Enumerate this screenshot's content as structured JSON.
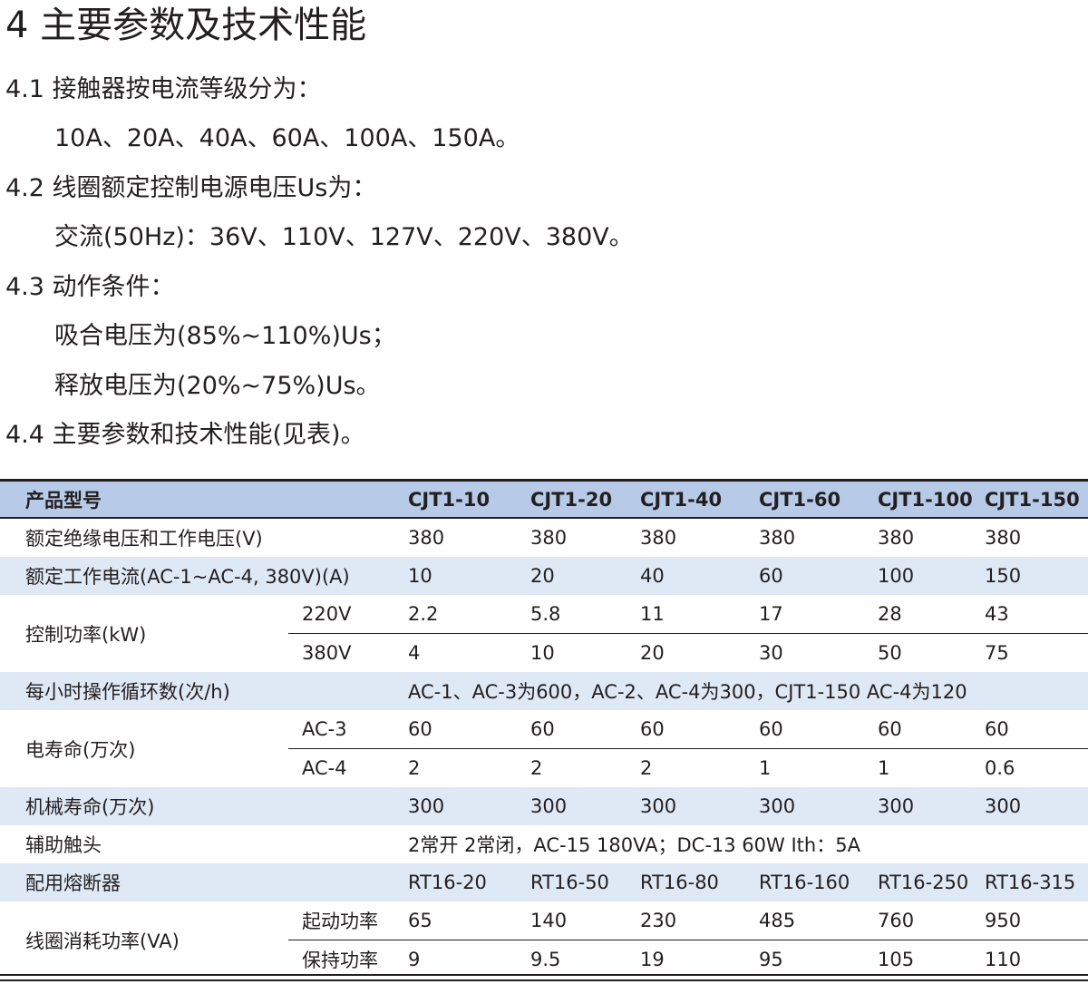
{
  "heading": "4 主要参数及技术性能",
  "paragraphs": [
    "4.1 接触器按电流等级分为：",
    "10A、20A、40A、60A、100A、150A。",
    "4.2 线圈额定控制电源电压Us为：",
    "交流(50Hz)：36V、110V、127V、220V、380V。",
    "4.3 动作条件：",
    "吸合电压为(85%~110%)Us；",
    "释放电压为(20%~75%)Us。",
    "4.4 主要参数和技术性能(见表)。"
  ],
  "table": {
    "header": {
      "label": "产品型号",
      "models": [
        "CJT1-10",
        "CJT1-20",
        "CJT1-40",
        "CJT1-60",
        "CJT1-100",
        "CJT1-150"
      ]
    },
    "rows": {
      "insulation": {
        "label": "额定绝缘电压和工作电压(V)",
        "values": [
          "380",
          "380",
          "380",
          "380",
          "380",
          "380"
        ]
      },
      "current": {
        "label": "额定工作电流(AC-1~AC-4, 380V)(A)",
        "values": [
          "10",
          "20",
          "40",
          "60",
          "100",
          "150"
        ]
      },
      "power": {
        "label": "控制功率(kW)",
        "sub": [
          {
            "label": "220V",
            "values": [
              "2.2",
              "5.8",
              "11",
              "17",
              "28",
              "43"
            ]
          },
          {
            "label": "380V",
            "values": [
              "4",
              "10",
              "20",
              "30",
              "50",
              "75"
            ]
          }
        ]
      },
      "cycles": {
        "label": "每小时操作循环数(次/h)",
        "text": "AC-1、AC-3为600，AC-2、AC-4为300，CJT1-150  AC-4为120"
      },
      "elife": {
        "label": "电寿命(万次)",
        "sub": [
          {
            "label": "AC-3",
            "values": [
              "60",
              "60",
              "60",
              "60",
              "60",
              "60"
            ]
          },
          {
            "label": "AC-4",
            "values": [
              "2",
              "2",
              "2",
              "1",
              "1",
              "0.6"
            ]
          }
        ]
      },
      "mlife": {
        "label": "机械寿命(万次)",
        "values": [
          "300",
          "300",
          "300",
          "300",
          "300",
          "300"
        ]
      },
      "aux": {
        "label": "辅助触头",
        "text": "2常开  2常闭，AC-15   180VA；DC-13  60W  Ith：5A"
      },
      "fuse": {
        "label": "配用熔断器",
        "values": [
          "RT16-20",
          "RT16-50",
          "RT16-80",
          "RT16-160",
          "RT16-250",
          "RT16-315"
        ]
      },
      "coil": {
        "label": "线圈消耗功率(VA)",
        "sub": [
          {
            "label": "起动功率",
            "values": [
              "65",
              "140",
              "230",
              "485",
              "760",
              "950"
            ]
          },
          {
            "label": "保持功率",
            "values": [
              "9",
              "9.5",
              "19",
              "95",
              "105",
              "110"
            ]
          }
        ]
      }
    }
  },
  "colors": {
    "header_bg": "#b7cbe8",
    "alt_row_bg": "#dfe8f5"
  }
}
